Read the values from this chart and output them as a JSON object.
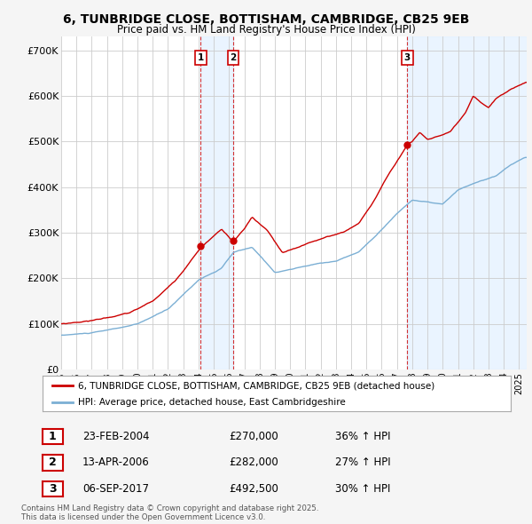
{
  "title": "6, TUNBRIDGE CLOSE, BOTTISHAM, CAMBRIDGE, CB25 9EB",
  "subtitle": "Price paid vs. HM Land Registry's House Price Index (HPI)",
  "red_label": "6, TUNBRIDGE CLOSE, BOTTISHAM, CAMBRIDGE, CB25 9EB (detached house)",
  "blue_label": "HPI: Average price, detached house, East Cambridgeshire",
  "red_color": "#cc0000",
  "blue_color": "#7bafd4",
  "bg_color": "#f5f5f5",
  "plot_bg_color": "#ffffff",
  "grid_color": "#cccccc",
  "shade_color": "#ddeeff",
  "ylim": [
    0,
    730000
  ],
  "yticks": [
    0,
    100000,
    200000,
    300000,
    400000,
    500000,
    600000,
    700000
  ],
  "ytick_labels": [
    "£0",
    "£100K",
    "£200K",
    "£300K",
    "£400K",
    "£500K",
    "£600K",
    "£700K"
  ],
  "transactions": [
    {
      "label": "1",
      "date": "23-FEB-2004",
      "price": 270000,
      "hpi_pct": "36%",
      "x_year": 2004.14
    },
    {
      "label": "2",
      "date": "13-APR-2006",
      "price": 282000,
      "hpi_pct": "27%",
      "x_year": 2006.28
    },
    {
      "label": "3",
      "date": "06-SEP-2017",
      "price": 492500,
      "hpi_pct": "30%",
      "x_year": 2017.68
    }
  ],
  "footnote": "Contains HM Land Registry data © Crown copyright and database right 2025.\nThis data is licensed under the Open Government Licence v3.0.",
  "xlim_start": 1995.0,
  "xlim_end": 2025.5
}
